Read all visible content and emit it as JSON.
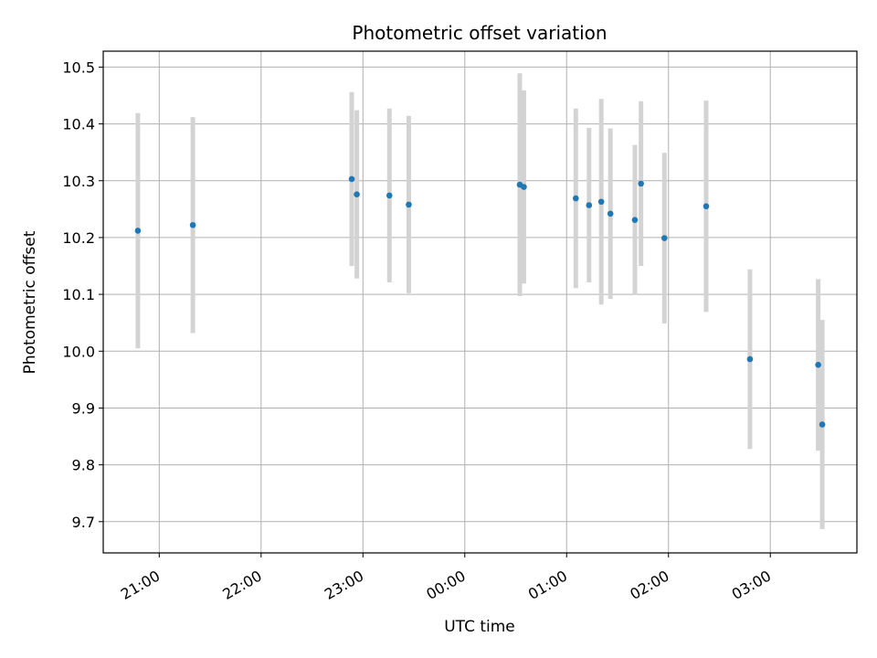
{
  "chart_data": {
    "type": "scatter",
    "title": "Photometric offset variation",
    "xlabel": "UTC time",
    "ylabel": "Photometric offset",
    "x_tick_labels": [
      "21:00",
      "22:00",
      "23:00",
      "00:00",
      "01:00",
      "02:00",
      "03:00"
    ],
    "x_tick_hours": [
      21,
      22,
      23,
      24,
      25,
      26,
      27
    ],
    "xlim_hours": [
      20.45,
      27.85
    ],
    "y_ticks": [
      9.7,
      9.8,
      9.9,
      10.0,
      10.1,
      10.2,
      10.3,
      10.4,
      10.5
    ],
    "y_tick_labels": [
      "9.7",
      "9.8",
      "9.9",
      "10.0",
      "10.1",
      "10.2",
      "10.3",
      "10.4",
      "10.5"
    ],
    "ylim": [
      9.645,
      10.528
    ],
    "grid": true,
    "colors": {
      "point": "#1f77b4",
      "errorbar": "#d3d3d3",
      "grid": "#b0b0b0"
    },
    "points": [
      {
        "t": "20:47",
        "hours": 20.79,
        "y": 10.212,
        "err": 0.207
      },
      {
        "t": "21:20",
        "hours": 21.33,
        "y": 10.222,
        "err": 0.19
      },
      {
        "t": "22:53",
        "hours": 22.89,
        "y": 10.303,
        "err": 0.153
      },
      {
        "t": "22:56",
        "hours": 22.94,
        "y": 10.276,
        "err": 0.148
      },
      {
        "t": "23:15",
        "hours": 23.26,
        "y": 10.274,
        "err": 0.153
      },
      {
        "t": "23:27",
        "hours": 23.45,
        "y": 10.258,
        "err": 0.156
      },
      {
        "t": "00:33",
        "hours": 24.54,
        "y": 10.293,
        "err": 0.196
      },
      {
        "t": "00:35",
        "hours": 24.58,
        "y": 10.289,
        "err": 0.17
      },
      {
        "t": "01:05",
        "hours": 25.09,
        "y": 10.269,
        "err": 0.158
      },
      {
        "t": "01:13",
        "hours": 25.22,
        "y": 10.257,
        "err": 0.136
      },
      {
        "t": "01:20",
        "hours": 25.34,
        "y": 10.263,
        "err": 0.181
      },
      {
        "t": "01:26",
        "hours": 25.43,
        "y": 10.242,
        "err": 0.15
      },
      {
        "t": "01:40",
        "hours": 25.67,
        "y": 10.231,
        "err": 0.132
      },
      {
        "t": "01:44",
        "hours": 25.73,
        "y": 10.295,
        "err": 0.145
      },
      {
        "t": "01:58",
        "hours": 25.96,
        "y": 10.199,
        "err": 0.15
      },
      {
        "t": "02:22",
        "hours": 26.37,
        "y": 10.255,
        "err": 0.186
      },
      {
        "t": "02:48",
        "hours": 26.8,
        "y": 9.986,
        "err": 0.158
      },
      {
        "t": "03:28",
        "hours": 27.47,
        "y": 9.976,
        "err": 0.151
      },
      {
        "t": "03:30",
        "hours": 27.51,
        "y": 9.871,
        "err": 0.184
      }
    ]
  }
}
